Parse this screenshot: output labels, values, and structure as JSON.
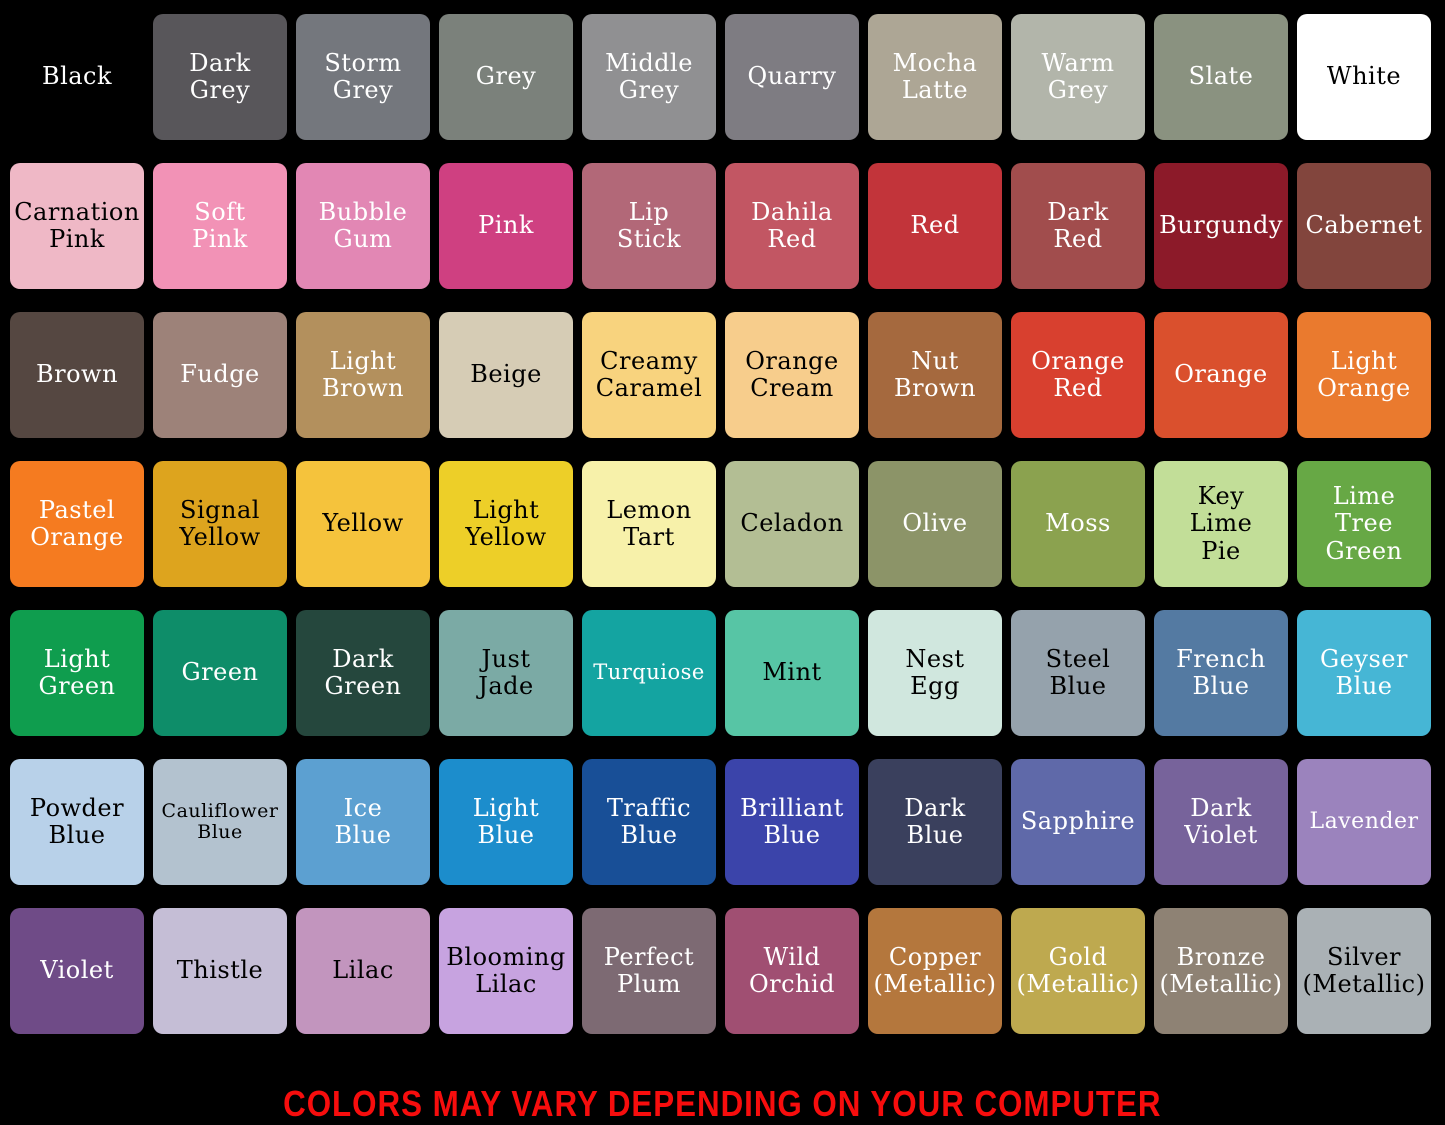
{
  "footer": {
    "disclaimer": "COLORS MAY VARY DEPENDING ON YOUR COMPUTER",
    "color": "#f70d0d"
  },
  "chart_data": {
    "type": "table",
    "grid": {
      "rows": 7,
      "cols": 10
    },
    "background": "#000000",
    "swatches": [
      {
        "label": "Black",
        "hex": "#000000",
        "text_color": "#ffffff"
      },
      {
        "label": "Dark\nGrey",
        "hex": "#58565a",
        "text_color": "#ffffff"
      },
      {
        "label": "Storm\nGrey",
        "hex": "#74777d",
        "text_color": "#ffffff"
      },
      {
        "label": "Grey",
        "hex": "#7b817b",
        "text_color": "#ffffff"
      },
      {
        "label": "Middle\nGrey",
        "hex": "#909092",
        "text_color": "#ffffff"
      },
      {
        "label": "Quarry",
        "hex": "#7e7c82",
        "text_color": "#ffffff"
      },
      {
        "label": "Mocha\nLatte",
        "hex": "#ada695",
        "text_color": "#ffffff"
      },
      {
        "label": "Warm\nGrey",
        "hex": "#b2b5aa",
        "text_color": "#ffffff"
      },
      {
        "label": "Slate",
        "hex": "#8a9280",
        "text_color": "#ffffff"
      },
      {
        "label": "White",
        "hex": "#ffffff",
        "text_color": "#000000"
      },
      {
        "label": "Carnation\nPink",
        "hex": "#efb8c6",
        "text_color": "#000000"
      },
      {
        "label": "Soft\nPink",
        "hex": "#f292b6",
        "text_color": "#ffffff"
      },
      {
        "label": "Bubble\nGum",
        "hex": "#e287b4",
        "text_color": "#ffffff"
      },
      {
        "label": "Pink",
        "hex": "#cf4081",
        "text_color": "#ffffff"
      },
      {
        "label": "Lip\nStick",
        "hex": "#b26878",
        "text_color": "#ffffff"
      },
      {
        "label": "Dahila\nRed",
        "hex": "#c25663",
        "text_color": "#ffffff"
      },
      {
        "label": "Red",
        "hex": "#c2343a",
        "text_color": "#ffffff"
      },
      {
        "label": "Dark\nRed",
        "hex": "#a14d4d",
        "text_color": "#ffffff"
      },
      {
        "label": "Burgundy",
        "hex": "#8c1a29",
        "text_color": "#ffffff"
      },
      {
        "label": "Cabernet",
        "hex": "#82453d",
        "text_color": "#ffffff"
      },
      {
        "label": "Brown",
        "hex": "#554741",
        "text_color": "#ffffff"
      },
      {
        "label": "Fudge",
        "hex": "#9d8279",
        "text_color": "#ffffff"
      },
      {
        "label": "Light\nBrown",
        "hex": "#b3905d",
        "text_color": "#ffffff"
      },
      {
        "label": "Beige",
        "hex": "#d6ccb5",
        "text_color": "#000000"
      },
      {
        "label": "Creamy\nCaramel",
        "hex": "#f8d37e",
        "text_color": "#000000"
      },
      {
        "label": "Orange\nCream",
        "hex": "#f7cd8c",
        "text_color": "#000000"
      },
      {
        "label": "Nut\nBrown",
        "hex": "#a5693e",
        "text_color": "#ffffff"
      },
      {
        "label": "Orange\nRed",
        "hex": "#d8402f",
        "text_color": "#ffffff"
      },
      {
        "label": "Orange",
        "hex": "#da502d",
        "text_color": "#ffffff"
      },
      {
        "label": "Light\nOrange",
        "hex": "#ea7a2e",
        "text_color": "#ffffff"
      },
      {
        "label": "Pastel\nOrange",
        "hex": "#f57b20",
        "text_color": "#ffffff"
      },
      {
        "label": "Signal\nYellow",
        "hex": "#dda41e",
        "text_color": "#000000"
      },
      {
        "label": "Yellow",
        "hex": "#f5c33c",
        "text_color": "#000000"
      },
      {
        "label": "Light\nYellow",
        "hex": "#edcf28",
        "text_color": "#000000"
      },
      {
        "label": "Lemon\nTart",
        "hex": "#f7f1aa",
        "text_color": "#000000"
      },
      {
        "label": "Celadon",
        "hex": "#b3be94",
        "text_color": "#000000"
      },
      {
        "label": "Olive",
        "hex": "#8c9468",
        "text_color": "#ffffff"
      },
      {
        "label": "Moss",
        "hex": "#8ba24f",
        "text_color": "#ffffff"
      },
      {
        "label": "Key\nLime\nPie",
        "hex": "#c2de98",
        "text_color": "#000000"
      },
      {
        "label": "Lime\nTree\nGreen",
        "hex": "#67a845",
        "text_color": "#ffffff"
      },
      {
        "label": "Light\nGreen",
        "hex": "#0f9d4e",
        "text_color": "#ffffff"
      },
      {
        "label": "Green",
        "hex": "#0e8d69",
        "text_color": "#ffffff"
      },
      {
        "label": "Dark\nGreen",
        "hex": "#25473d",
        "text_color": "#ffffff"
      },
      {
        "label": "Just\nJade",
        "hex": "#7baaa5",
        "text_color": "#000000"
      },
      {
        "label": "Turquiose",
        "hex": "#14a4a1",
        "text_color": "#ffffff",
        "font_size": 21
      },
      {
        "label": "Mint",
        "hex": "#57c5a5",
        "text_color": "#000000"
      },
      {
        "label": "Nest\nEgg",
        "hex": "#d0e7de",
        "text_color": "#000000"
      },
      {
        "label": "Steel\nBlue",
        "hex": "#95a2ac",
        "text_color": "#000000"
      },
      {
        "label": "French\nBlue",
        "hex": "#547aa2",
        "text_color": "#ffffff"
      },
      {
        "label": "Geyser\nBlue",
        "hex": "#46b6d5",
        "text_color": "#ffffff"
      },
      {
        "label": "Powder\nBlue",
        "hex": "#b8d1e9",
        "text_color": "#000000"
      },
      {
        "label": "Cauliflower\nBlue",
        "hex": "#b3c2cf",
        "text_color": "#000000",
        "font_size": 19
      },
      {
        "label": "Ice\nBlue",
        "hex": "#5ca0d1",
        "text_color": "#ffffff"
      },
      {
        "label": "Light\nBlue",
        "hex": "#1c8dcc",
        "text_color": "#ffffff"
      },
      {
        "label": "Traffic\nBlue",
        "hex": "#184f97",
        "text_color": "#ffffff"
      },
      {
        "label": "Brilliant\nBlue",
        "hex": "#3b44aa",
        "text_color": "#ffffff"
      },
      {
        "label": "Dark\nBlue",
        "hex": "#3a405d",
        "text_color": "#ffffff"
      },
      {
        "label": "Sapphire",
        "hex": "#5f69a9",
        "text_color": "#ffffff"
      },
      {
        "label": "Dark\nViolet",
        "hex": "#77639b",
        "text_color": "#ffffff"
      },
      {
        "label": "Lavender",
        "hex": "#9b83bd",
        "text_color": "#ffffff",
        "font_size": 22
      },
      {
        "label": "Violet",
        "hex": "#6f4b87",
        "text_color": "#ffffff"
      },
      {
        "label": "Thistle",
        "hex": "#c5bed6",
        "text_color": "#000000"
      },
      {
        "label": "Lilac",
        "hex": "#c295be",
        "text_color": "#000000"
      },
      {
        "label": "Blooming\nLilac",
        "hex": "#c7a3e0",
        "text_color": "#000000"
      },
      {
        "label": "Perfect\nPlum",
        "hex": "#7d6a73",
        "text_color": "#ffffff"
      },
      {
        "label": "Wild\nOrchid",
        "hex": "#a04f72",
        "text_color": "#ffffff"
      },
      {
        "label": "Copper\n(Metallic)",
        "hex": "#b4773d",
        "text_color": "#ffffff",
        "metallic": true
      },
      {
        "label": "Gold\n(Metallic)",
        "hex": "#bea94f",
        "text_color": "#ffffff",
        "metallic": true
      },
      {
        "label": "Bronze\n(Metallic)",
        "hex": "#8e8274",
        "text_color": "#ffffff",
        "metallic": true
      },
      {
        "label": "Silver\n(Metallic)",
        "hex": "#aab1b5",
        "text_color": "#000000",
        "metallic": true
      }
    ]
  }
}
